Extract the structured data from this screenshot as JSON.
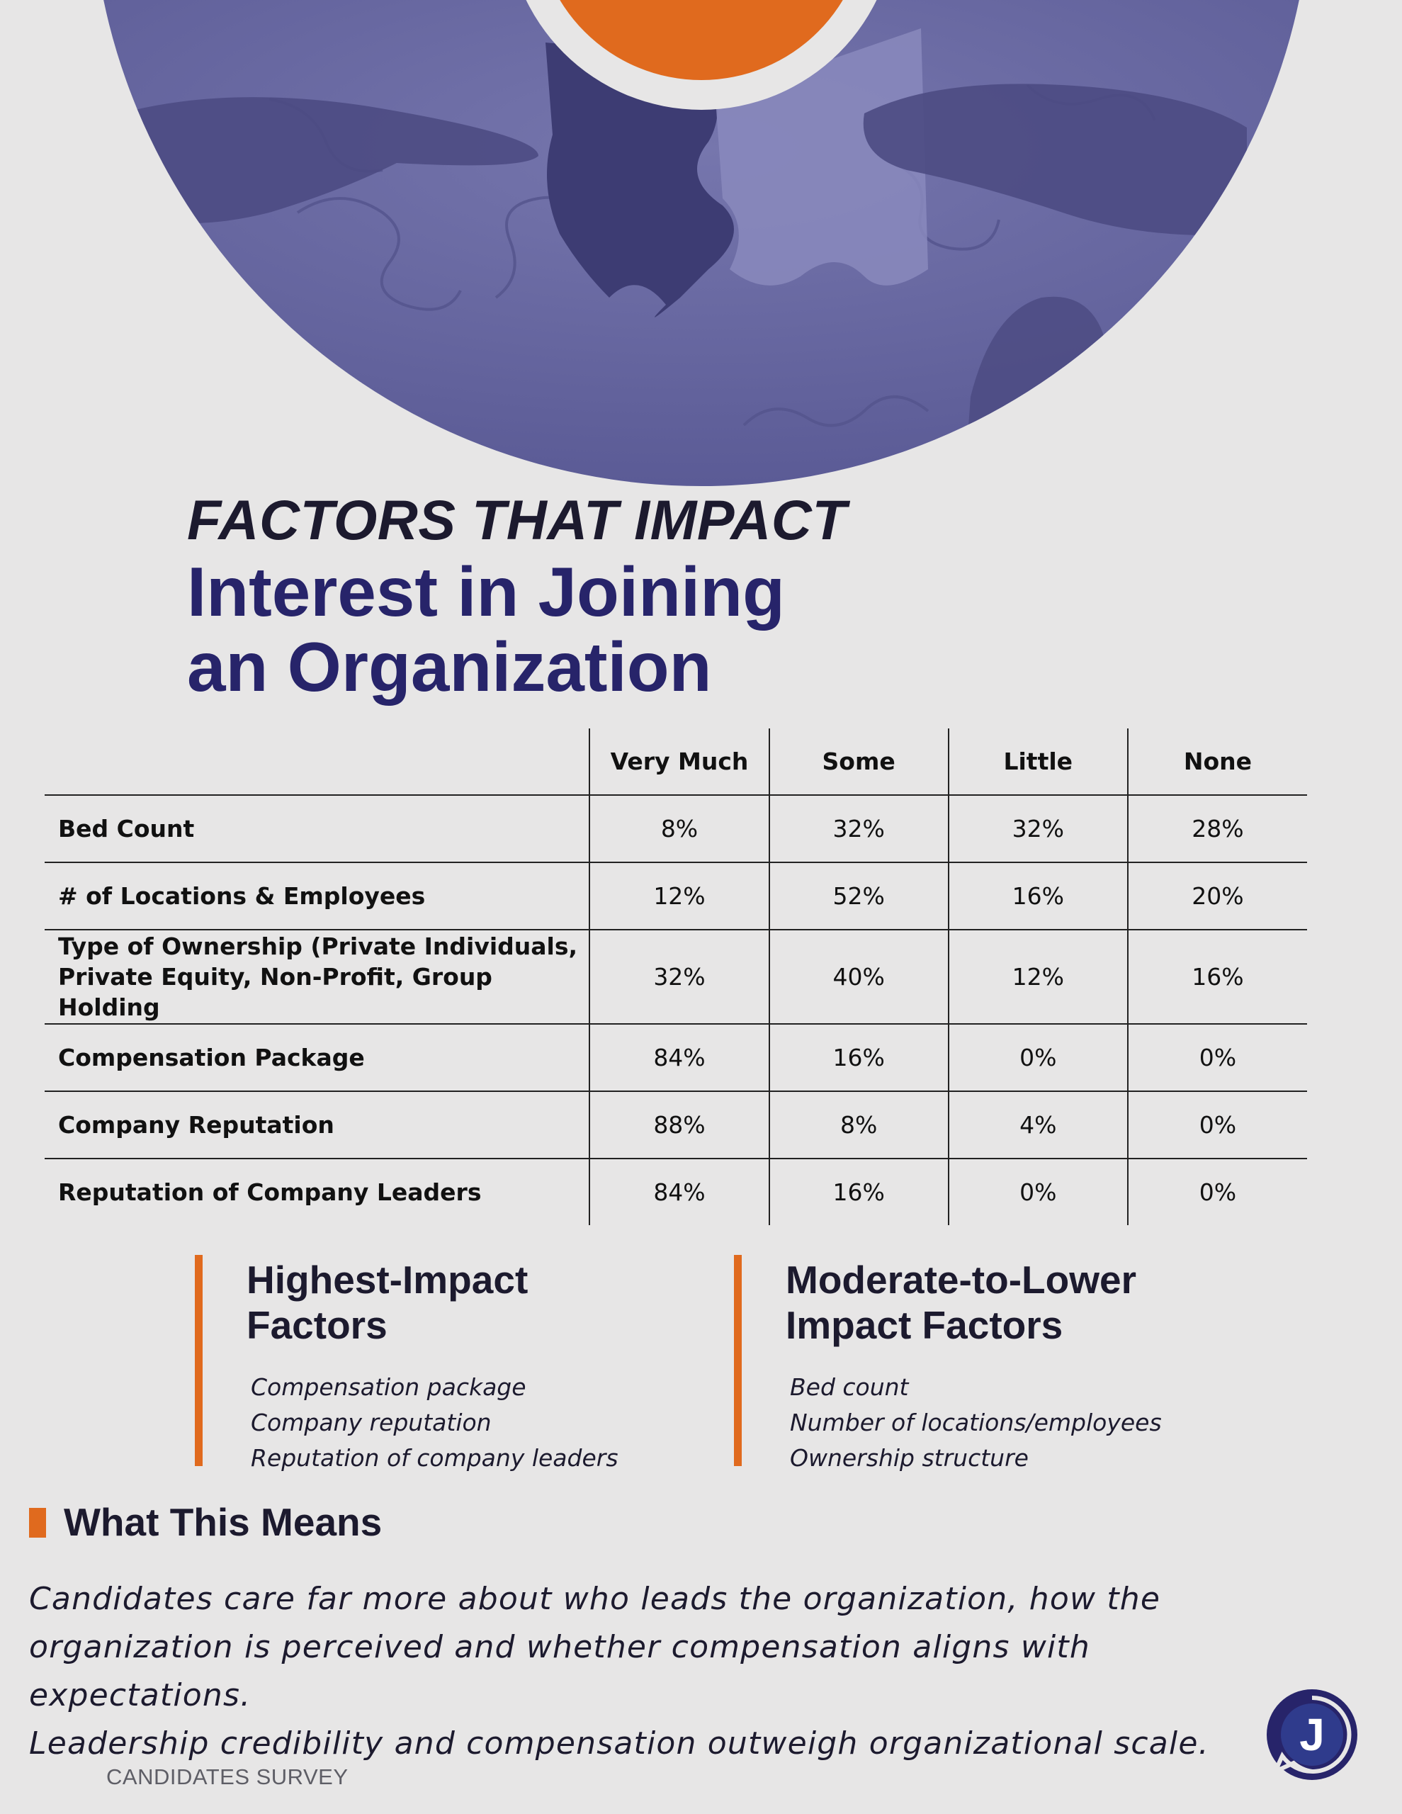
{
  "header": {
    "kicker": "FACTORS THAT IMPACT",
    "headline_line1": "Interest in Joining",
    "headline_line2": "an Organization",
    "hero_image": "hands-assembling-puzzle-photo"
  },
  "table": {
    "columns": [
      "",
      "Very Much",
      "Some",
      "Little",
      "None"
    ],
    "rows": [
      {
        "label": "Bed Count",
        "values": [
          "8%",
          "32%",
          "32%",
          "28%"
        ]
      },
      {
        "label": "# of Locations & Employees",
        "values": [
          "12%",
          "52%",
          "16%",
          "20%"
        ]
      },
      {
        "label_line1": "Type of Ownership (Private Individuals,",
        "label_line2": "Private Equity, Non-Profit, Group Holding",
        "values": [
          "32%",
          "40%",
          "12%",
          "16%"
        ]
      },
      {
        "label": "Compensation Package",
        "values": [
          "84%",
          "16%",
          "0%",
          "0%"
        ]
      },
      {
        "label": "Company Reputation",
        "values": [
          "88%",
          "8%",
          "4%",
          "0%"
        ]
      },
      {
        "label": "Reputation of Company Leaders",
        "values": [
          "84%",
          "16%",
          "0%",
          "0%"
        ]
      }
    ]
  },
  "highest_impact": {
    "title_line1": "Highest-Impact",
    "title_line2": "Factors",
    "items": [
      "Compensation package",
      "Company reputation",
      "Reputation of company leaders"
    ]
  },
  "moderate_impact": {
    "title_line1": "Moderate-to-Lower",
    "title_line2": "Impact Factors",
    "items": [
      "Bed count",
      "Number of locations/employees",
      "Ownership structure"
    ]
  },
  "what_this_means": {
    "title": "What This Means",
    "body_line1": "Candidates care far more about who leads the organization, how the",
    "body_line2": "organization is perceived and whether compensation aligns with expectations.",
    "body_line3": "Leadership credibility and compensation outweigh organizational scale."
  },
  "footer": {
    "label": "CANDIDATES SURVEY",
    "logo_letter": "J",
    "logo_icon": "j-speech-bubble-logo"
  },
  "colors": {
    "accent_orange": "#e06a1e",
    "navy": "#27246a",
    "hero_purple": "#6b6ba3",
    "background": "#e7e6e6"
  }
}
